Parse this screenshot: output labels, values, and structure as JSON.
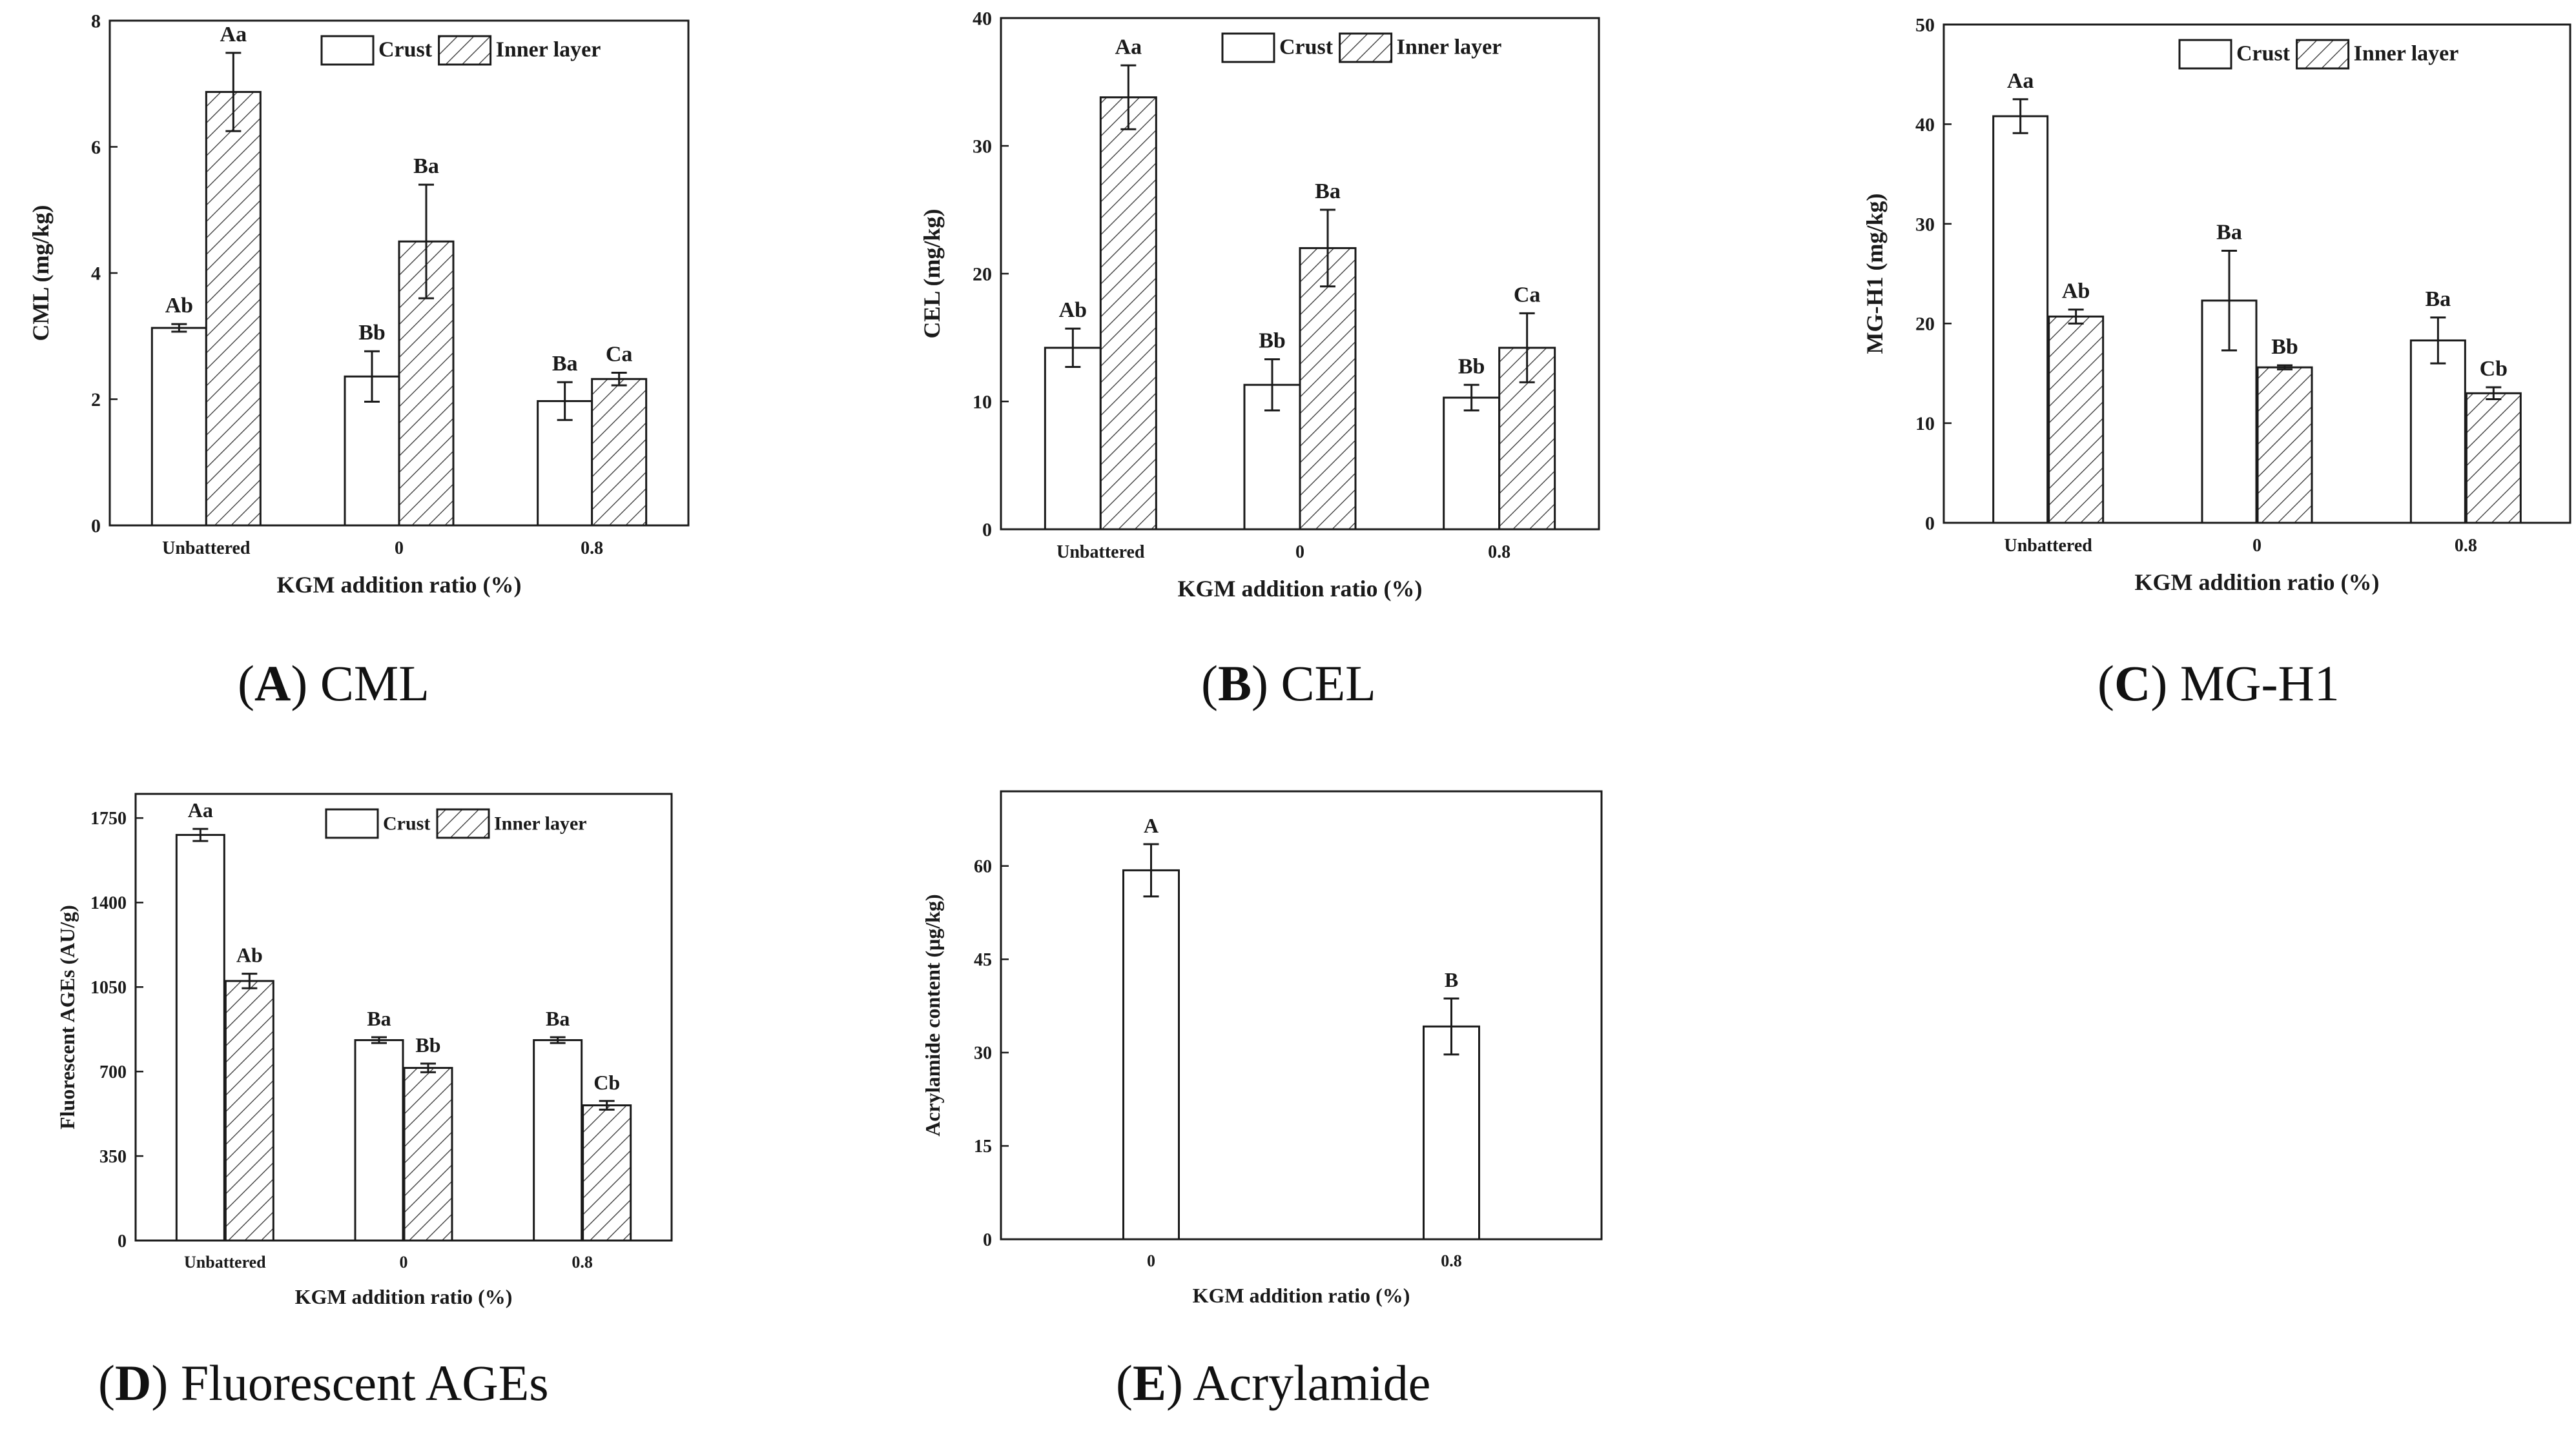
{
  "colors": {
    "ink": "#1a1a1a",
    "bar_fill": "#ffffff",
    "hatch": "#333333"
  },
  "chart_data": [
    {
      "id": "A",
      "type": "bar",
      "caption_letter": "A",
      "caption_text": "CML",
      "ylabel": "CML (mg/kg)",
      "xlabel": "KGM addition ratio (%)",
      "categories": [
        "Unbattered",
        "0",
        "0.8"
      ],
      "ylim": [
        0,
        8
      ],
      "yticks": [
        0,
        2,
        4,
        6,
        8
      ],
      "legend": [
        "Crust",
        "Inner layer"
      ],
      "series": [
        {
          "name": "Crust",
          "values": [
            3.13,
            2.36,
            1.97
          ],
          "errors": [
            0.06,
            0.4,
            0.3
          ],
          "letters": [
            "Ab",
            "Bb",
            "Ba"
          ]
        },
        {
          "name": "Inner layer",
          "values": [
            6.87,
            4.5,
            2.32
          ],
          "errors": [
            0.62,
            0.9,
            0.1
          ],
          "letters": [
            "Aa",
            "Ba",
            "Ca"
          ]
        }
      ]
    },
    {
      "id": "B",
      "type": "bar",
      "caption_letter": "B",
      "caption_text": "CEL",
      "ylabel": "CEL (mg/kg)",
      "xlabel": "KGM addition ratio (%)",
      "categories": [
        "Unbattered",
        "0",
        "0.8"
      ],
      "ylim": [
        0,
        40
      ],
      "yticks": [
        0,
        10,
        20,
        30,
        40
      ],
      "legend": [
        "Crust",
        "Inner layer"
      ],
      "series": [
        {
          "name": "Crust",
          "values": [
            14.2,
            11.3,
            10.3
          ],
          "errors": [
            1.5,
            2.0,
            1.0
          ],
          "letters": [
            "Ab",
            "Bb",
            "Bb"
          ]
        },
        {
          "name": "Inner layer",
          "values": [
            33.8,
            22.0,
            14.2
          ],
          "errors": [
            2.5,
            3.0,
            2.7
          ],
          "letters": [
            "Aa",
            "Ba",
            "Ca"
          ]
        }
      ]
    },
    {
      "id": "C",
      "type": "bar",
      "caption_letter": "C",
      "caption_text": "MG-H1",
      "ylabel": "MG-H1 (mg/kg)",
      "xlabel": "KGM addition ratio (%)",
      "categories": [
        "Unbattered",
        "0",
        "0.8"
      ],
      "ylim": [
        0,
        50
      ],
      "yticks": [
        0,
        10,
        20,
        30,
        40,
        50
      ],
      "legend": [
        "Crust",
        "Inner layer"
      ],
      "series": [
        {
          "name": "Crust",
          "values": [
            40.8,
            22.3,
            18.3
          ],
          "errors": [
            1.7,
            5.0,
            2.3
          ],
          "letters": [
            "Aa",
            "Ba",
            "Ba"
          ]
        },
        {
          "name": "Inner layer",
          "values": [
            20.7,
            15.6,
            13.0
          ],
          "errors": [
            0.7,
            0.2,
            0.6
          ],
          "letters": [
            "Ab",
            "Bb",
            "Cb"
          ]
        }
      ]
    },
    {
      "id": "D",
      "type": "bar",
      "caption_letter": "D",
      "caption_text": "Fluorescent AGEs",
      "ylabel": "Fluorescent AGEs (AU/g)",
      "xlabel": "KGM addition ratio (%)",
      "categories": [
        "Unbattered",
        "0",
        "0.8"
      ],
      "ylim": [
        0,
        1850
      ],
      "yticks": [
        0,
        350,
        700,
        1050,
        1400,
        1750
      ],
      "legend": [
        "Crust",
        "Inner layer"
      ],
      "series": [
        {
          "name": "Crust",
          "values": [
            1680,
            830,
            830
          ],
          "errors": [
            25,
            12,
            12
          ],
          "letters": [
            "Aa",
            "Ba",
            "Ba"
          ]
        },
        {
          "name": "Inner layer",
          "values": [
            1075,
            715,
            560
          ],
          "errors": [
            30,
            18,
            18
          ],
          "letters": [
            "Ab",
            "Bb",
            "Cb"
          ]
        }
      ]
    },
    {
      "id": "E",
      "type": "bar",
      "caption_letter": "E",
      "caption_text": "Acrylamide",
      "ylabel": "Acrylamide content (μg/kg)",
      "xlabel": "KGM addition ratio (%)",
      "categories": [
        "0",
        "0.8"
      ],
      "ylim": [
        0,
        72
      ],
      "yticks": [
        0,
        15,
        30,
        45,
        60
      ],
      "legend": [],
      "series": [
        {
          "name": "Acrylamide",
          "values": [
            59.3,
            34.2
          ],
          "errors": [
            4.2,
            4.5
          ],
          "letters": [
            "A",
            "B"
          ]
        }
      ]
    }
  ]
}
